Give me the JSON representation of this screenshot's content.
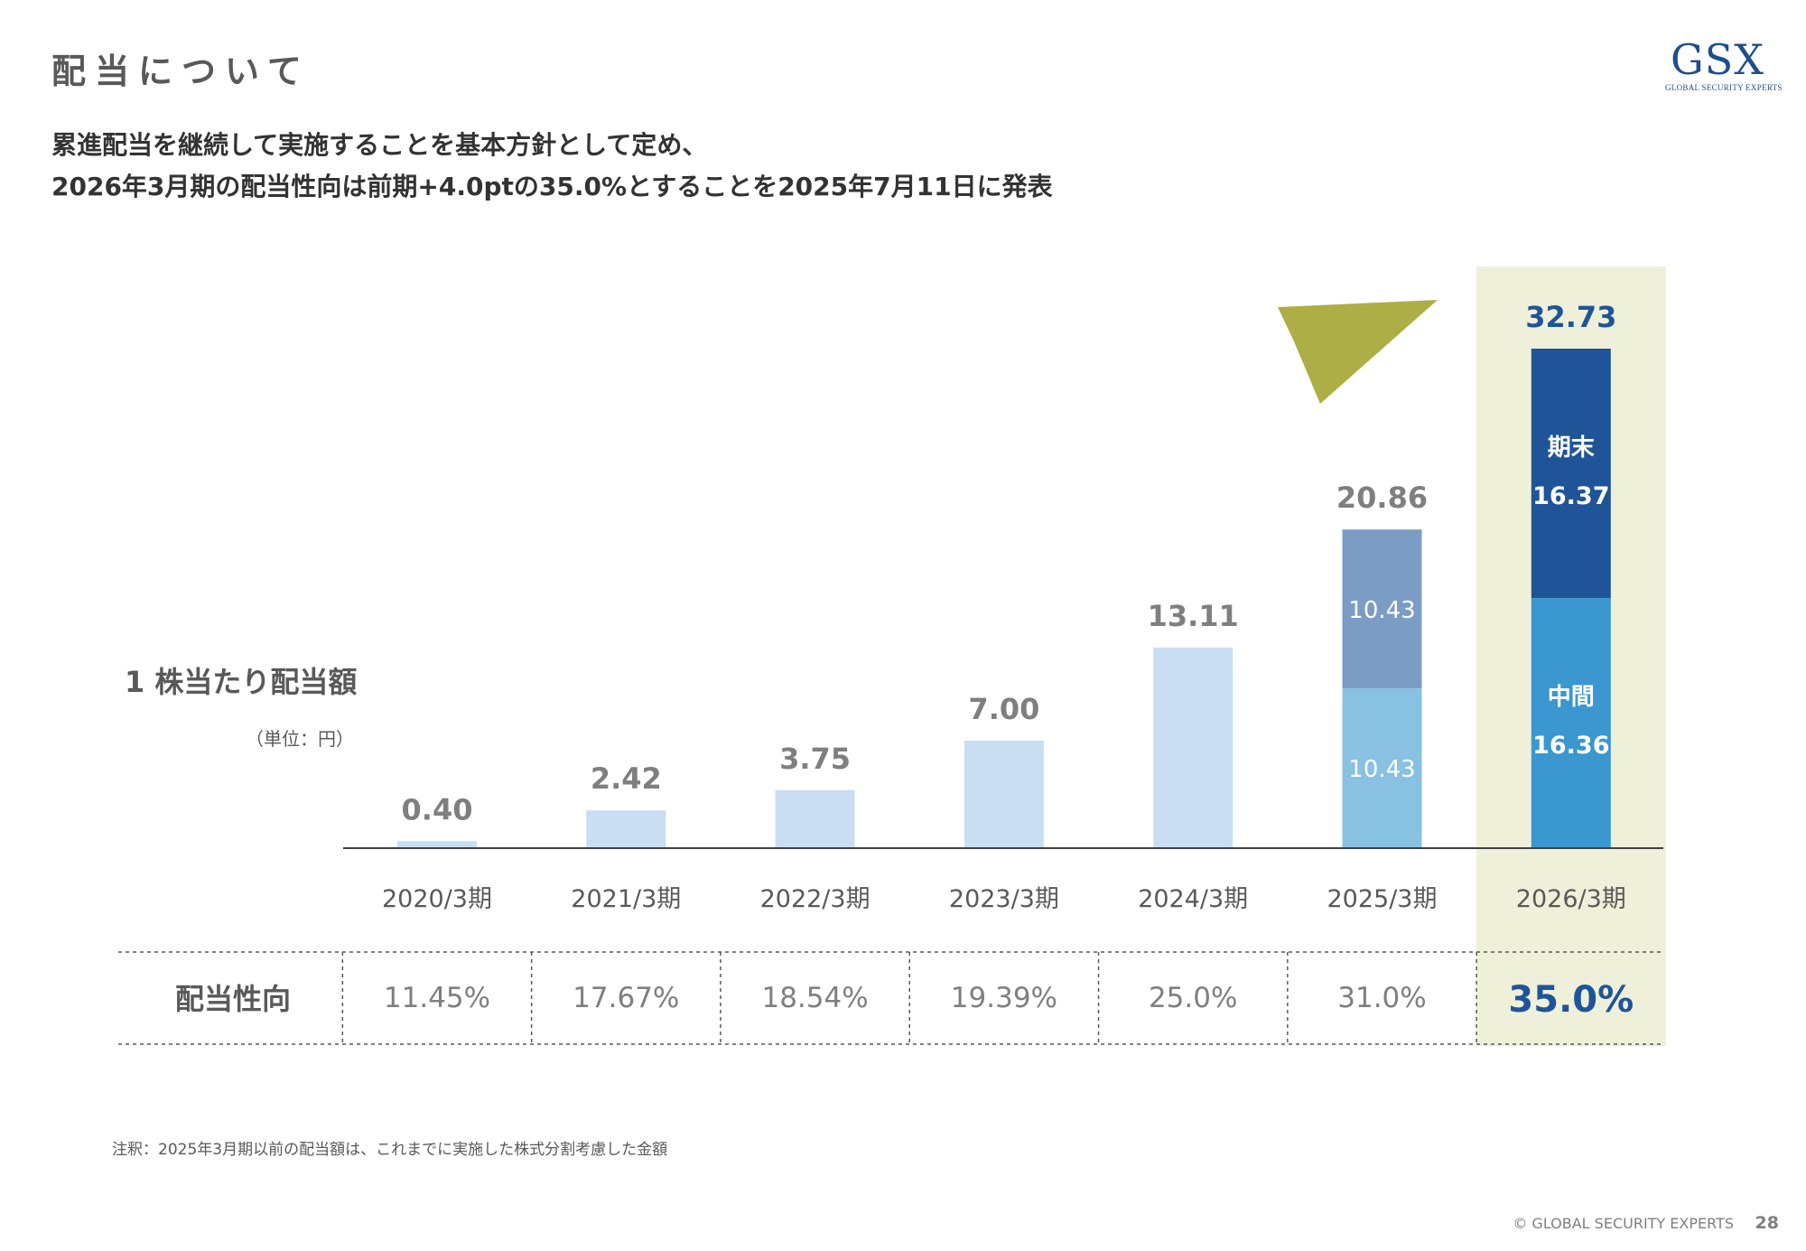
{
  "header": {
    "title": "配当について",
    "logo_main": "GSX",
    "logo_sub": "GLOBAL SECURITY EXPERTS"
  },
  "headline": {
    "line1": "累進配当を継続して実施することを基本方針として定め、",
    "line2": "2026年3月期の配当性向は前期+4.0ptの35.0%とすることを2025年7月11日に発表"
  },
  "chart_data": {
    "type": "bar",
    "ylabel": "1 株当たり配当額",
    "yunit": "（単位：円）",
    "categories": [
      "2020/3期",
      "2021/3期",
      "2022/3期",
      "2023/3期",
      "2024/3期",
      "2025/3期",
      "2026/3期"
    ],
    "totals": [
      "0.40",
      "2.42",
      "3.75",
      "7.00",
      "13.11",
      "20.86",
      "32.73"
    ],
    "series": [
      {
        "name": "中間",
        "values": [
          0.4,
          2.42,
          3.75,
          7.0,
          13.11,
          10.43,
          16.36
        ],
        "labels": [
          "",
          "",
          "",
          "",
          "",
          "10.43",
          "16.36"
        ]
      },
      {
        "name": "期末",
        "values": [
          0,
          0,
          0,
          0,
          0,
          10.43,
          16.37
        ],
        "labels": [
          "",
          "",
          "",
          "",
          "",
          "10.43",
          "16.37"
        ]
      }
    ],
    "ylim": [
      0,
      32.73
    ],
    "highlight_category": "2026/3期",
    "payout": {
      "label": "配当性向",
      "values": [
        "11.45%",
        "17.67%",
        "18.54%",
        "19.39%",
        "25.0%",
        "31.0%",
        "35.0%"
      ]
    },
    "colors": {
      "single_bar": "#c9ddf3",
      "interim_2025": "#88c1e1",
      "final_2025": "#7b9cc4",
      "interim_2026": "#3a97cf",
      "final_2026": "#1f5598",
      "highlight_bg": "#eff0d9",
      "arrow": "#adae45",
      "highlight_text": "#1f5598"
    }
  },
  "footnote": "注釈：2025年3月期以前の配当額は、これまでに実施した株式分割考慮した金額",
  "footer": {
    "copyright": "© GLOBAL SECURITY EXPERTS",
    "page": "28"
  }
}
